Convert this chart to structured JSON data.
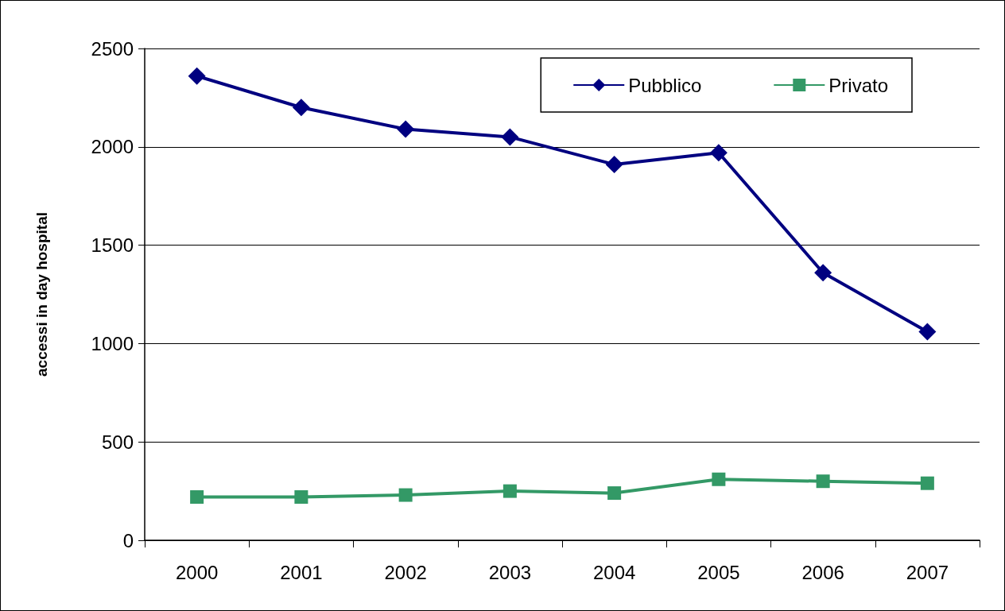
{
  "chart_data": {
    "type": "line",
    "ylabel": "accessi in day hospital",
    "categories": [
      "2000",
      "2001",
      "2002",
      "2003",
      "2004",
      "2005",
      "2006",
      "2007"
    ],
    "series": [
      {
        "name": "Pubblico",
        "color": "#000080",
        "marker": "diamond",
        "values": [
          2360,
          2200,
          2090,
          2050,
          1910,
          1970,
          1360,
          1060
        ]
      },
      {
        "name": "Privato",
        "color": "#339966",
        "marker": "square",
        "values": [
          220,
          220,
          230,
          250,
          240,
          310,
          300,
          290
        ]
      }
    ],
    "ylim": [
      0,
      2500
    ],
    "yticks": [
      0,
      500,
      1000,
      1500,
      2000,
      2500
    ],
    "grid": "y",
    "legend": "top right",
    "line_style": "solid"
  }
}
